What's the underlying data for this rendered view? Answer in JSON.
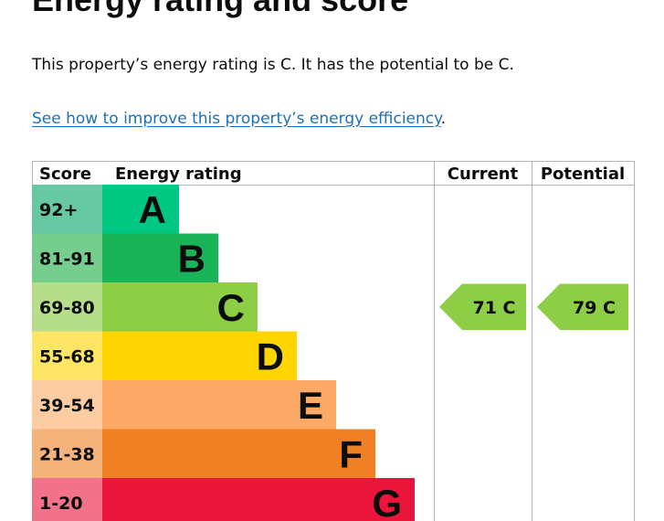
{
  "heading": "Energy rating and score",
  "summary": "This property’s energy rating is C. It has the potential to be C.",
  "improve_link": "See how to improve this property’s energy efficiency",
  "improve_suffix": ".",
  "chart_data": {
    "type": "bar",
    "headers": {
      "score": "Score",
      "rating": "Energy rating",
      "current": "Current",
      "potential": "Potential"
    },
    "bands": [
      {
        "score": "92+",
        "letter": "A",
        "color": "#00c781",
        "score_color": "#67c9a4"
      },
      {
        "score": "81-91",
        "letter": "B",
        "color": "#19b459",
        "score_color": "#75cd8e"
      },
      {
        "score": "69-80",
        "letter": "C",
        "color": "#8dce46",
        "score_color": "#b6de8a"
      },
      {
        "score": "55-68",
        "letter": "D",
        "color": "#ffd500",
        "score_color": "#ffe566"
      },
      {
        "score": "39-54",
        "letter": "E",
        "color": "#fcaa65",
        "score_color": "#fdcca3"
      },
      {
        "score": "21-38",
        "letter": "F",
        "color": "#ef8023",
        "score_color": "#f5b37b"
      },
      {
        "score": "1-20",
        "letter": "G",
        "color": "#e9153b",
        "score_color": "#f27389"
      }
    ],
    "current": {
      "value": 71,
      "band": "C",
      "label": "71  C"
    },
    "potential": {
      "value": 79,
      "band": "C",
      "label": "79  C"
    }
  }
}
